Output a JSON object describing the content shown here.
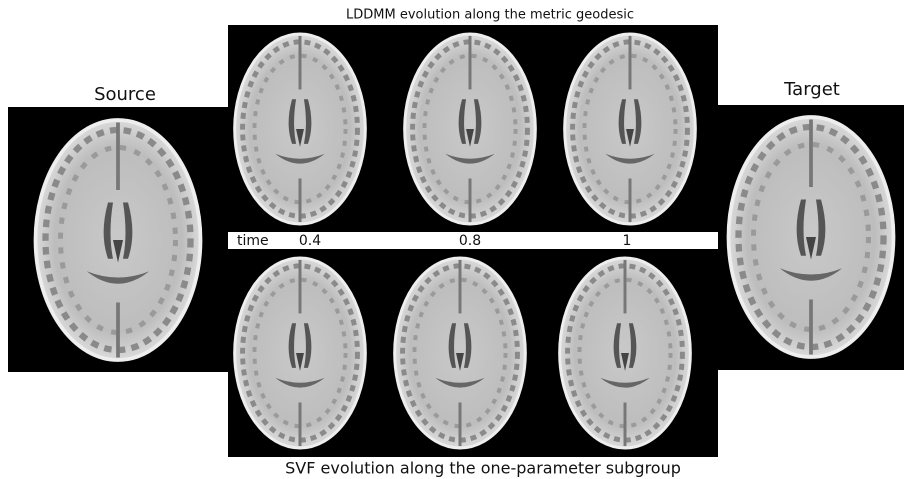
{
  "top_title": "LDDMM evolution along the metric geodesic",
  "bottom_title": "SVF evolution along the one-parameter subgroup",
  "source_label": "Source",
  "target_label": "Target",
  "time_row": {
    "label": "time",
    "steps": [
      "0.4",
      "0.8",
      "1"
    ]
  }
}
